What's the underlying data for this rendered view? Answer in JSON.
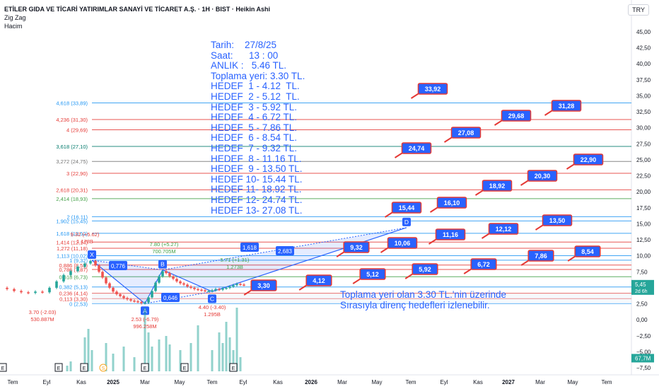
{
  "header": {
    "title": "ETİLER GIDA VE TİCARİ YATIRIMLAR SANAYİ VE TİCARET A.Ş. · 1H · BIST · Heikin Ashi",
    "indicator1": "Zig Zag",
    "indicator2": "Hacim",
    "currency": "TRY"
  },
  "note_lines": [
    "Tarih:    27/8/25",
    "Saat:      13 : 00",
    "ANLIK :   5.46 TL.",
    "Toplama yeri: 3.30 TL.",
    "HEDEF  1 - 4.12  TL.",
    "HEDEF  2 - 5.12  TL.",
    "HEDEF  3 - 5.92 TL.",
    "HEDEF  4 - 6.72 TL.",
    "HEDEF  5 - 7.86 TL.",
    "HEDEF  6 - 8.54 TL.",
    "HEDEF  7 - 9.32 TL.",
    "HEDEF  8 - 11.16 TL.",
    "HEDEF  9 - 13.50 TL.",
    "HEDEF 10- 15.44 TL.",
    "HEDEF 11- 18.92 TL.",
    "HEDEF 12- 24.74 TL.",
    "HEDEF 13- 27.08 TL."
  ],
  "caption_lines": [
    "Toplama yeri olan 3.30 TL.'nin üzerinde",
    "Sırasıyla direnç hedefleri izlenebilir."
  ],
  "chart_data": {
    "type": "candlestick",
    "y_axis_ticks": [
      "45,00",
      "42,50",
      "40,00",
      "37,50",
      "35,00",
      "32,50",
      "30,00",
      "27,50",
      "25,00",
      "22,50",
      "20,00",
      "17,50",
      "15,00",
      "12,50",
      "10,00",
      "7,50",
      "5,00",
      "2,50",
      "0,00",
      "−2,50",
      "−5,00",
      "−7,50"
    ],
    "y_axis_values": [
      45,
      42.5,
      40,
      37.5,
      35,
      32.5,
      30,
      27.5,
      25,
      22.5,
      20,
      17.5,
      15,
      12.5,
      10,
      7.5,
      5,
      2.5,
      0,
      -2.5,
      -5,
      -7.5
    ],
    "ylim": [
      -8.5,
      47
    ],
    "x_axis_ticks": [
      "Tem",
      "Eyl",
      "Kas",
      "2025",
      "Mar",
      "May",
      "Tem",
      "Eyl",
      "Kas",
      "2026",
      "Mar",
      "May",
      "Tem",
      "Eyl",
      "Kas",
      "2027",
      "Mar",
      "May",
      "Tem"
    ],
    "current_price": "5,45",
    "current_price_timer": "2d 6h",
    "current_volume": "67,7M",
    "fib_levels": [
      {
        "label": "4,618 (33,89)",
        "value": 33.89,
        "color": "#2196f3"
      },
      {
        "label": "4,236 (31,30)",
        "value": 31.3,
        "color": "#e53935"
      },
      {
        "label": "4 (29,69)",
        "value": 29.69,
        "color": "#e53935"
      },
      {
        "label": "3,618 (27,10)",
        "value": 27.1,
        "color": "#00796b"
      },
      {
        "label": "3,272 (24,75)",
        "value": 24.75,
        "color": "#757575"
      },
      {
        "label": "3 (22,90)",
        "value": 22.9,
        "color": "#e53935"
      },
      {
        "label": "2,618 (20,31)",
        "value": 20.31,
        "color": "#e53935"
      },
      {
        "label": "2,414 (18,93)",
        "value": 18.93,
        "color": "#43a047"
      },
      {
        "label": "2 (16,11)",
        "value": 16.11,
        "color": "#2196f3"
      },
      {
        "label": "1,902 (15,45)",
        "value": 15.45,
        "color": "#2196f3"
      },
      {
        "label": "1,618 (13,52)",
        "value": 13.52,
        "color": "#2196f3"
      },
      {
        "label": "1,414 (12,14)",
        "value": 12.14,
        "color": "#e53935"
      },
      {
        "label": "1,272 (11,18)",
        "value": 11.18,
        "color": "#e53935"
      },
      {
        "label": "1,113 (10,02)",
        "value": 10.02,
        "color": "#2196f3"
      },
      {
        "label": "1 (9,32)",
        "value": 9.32,
        "color": "#2196f3"
      },
      {
        "label": "0,886 (8,55)",
        "value": 8.55,
        "color": "#e53935"
      },
      {
        "label": "0,786 (7,87)",
        "value": 7.87,
        "color": "#e53935"
      },
      {
        "label": "0,618 (6,73)",
        "value": 6.73,
        "color": "#43a047"
      },
      {
        "label": "0,382 (5,13)",
        "value": 5.13,
        "color": "#2196f3"
      },
      {
        "label": "0,236 (4,14)",
        "value": 4.14,
        "color": "#e53935"
      },
      {
        "label": "0,113 (3,30)",
        "value": 3.3,
        "color": "#e53935"
      },
      {
        "label": "0 (2,53)",
        "value": 2.53,
        "color": "#2196f3"
      }
    ],
    "targets": [
      {
        "label": "3,30",
        "value": 3.3,
        "color": "#2962ff"
      },
      {
        "label": "4,12",
        "value": 4.12,
        "color": "#2962ff"
      },
      {
        "label": "5,12",
        "value": 5.12,
        "color": "#2962ff"
      },
      {
        "label": "5,92",
        "value": 5.92,
        "color": "#2962ff"
      },
      {
        "label": "6,72",
        "value": 6.72,
        "color": "#2962ff"
      },
      {
        "label": "7,86",
        "value": 7.86,
        "color": "#2962ff"
      },
      {
        "label": "8,54",
        "value": 8.54,
        "color": "#2962ff"
      },
      {
        "label": "9,32",
        "value": 9.32,
        "color": "#2962ff"
      },
      {
        "label": "10,06",
        "value": 10.06,
        "color": "#2962ff"
      },
      {
        "label": "11,16",
        "value": 11.16,
        "color": "#2962ff"
      },
      {
        "label": "12,12",
        "value": 12.12,
        "color": "#2962ff"
      },
      {
        "label": "13,50",
        "value": 13.5,
        "color": "#2962ff"
      },
      {
        "label": "15,44",
        "value": 15.44,
        "color": "#2962ff"
      },
      {
        "label": "16,10",
        "value": 16.1,
        "color": "#2962ff"
      },
      {
        "label": "18,92",
        "value": 18.92,
        "color": "#2962ff"
      },
      {
        "label": "20,30",
        "value": 20.3,
        "color": "#2962ff"
      },
      {
        "label": "22,90",
        "value": 22.9,
        "color": "#2962ff"
      },
      {
        "label": "24,74",
        "value": 24.74,
        "color": "#2962ff"
      },
      {
        "label": "27,08",
        "value": 27.08,
        "color": "#2962ff"
      },
      {
        "label": "29,68",
        "value": 29.68,
        "color": "#2962ff"
      },
      {
        "label": "31,28",
        "value": 31.28,
        "color": "#2962ff"
      },
      {
        "label": "33,92",
        "value": 33.92,
        "color": "#2962ff"
      }
    ],
    "pattern_points": [
      {
        "label": "X",
        "value": 9.3
      },
      {
        "label": "A",
        "value": 2.53
      },
      {
        "label": "B",
        "value": 7.8
      },
      {
        "label": "C",
        "value": 4.4
      },
      {
        "label": "D",
        "value": 14.4
      }
    ],
    "ratio_labels": [
      "0,776",
      "0,646",
      "1,618",
      "2,683"
    ],
    "zigzag_labels": [
      {
        "text": "3.70 (-2.03)",
        "sub": "530.887M",
        "value": 3.7
      },
      {
        "text": "2.53 (-6.79)",
        "sub": "996.258M",
        "value": 2.53
      },
      {
        "text": "7.80 (+5.27)",
        "sub": "700.705M",
        "value": 7.8
      },
      {
        "text": "4.40 (-3.40)",
        "sub": "1.295B",
        "value": 4.4
      },
      {
        "text": "5.71 (+1.31)",
        "sub": "1.273B",
        "value": 5.71
      },
      {
        "text": "9.32 (+5.62)",
        "sub": "1.178B",
        "value": 9.32
      }
    ],
    "colors": {
      "up": "#26a69a",
      "down": "#ef5350",
      "target_box": "#2962ff",
      "target_border": "#e53935"
    }
  }
}
